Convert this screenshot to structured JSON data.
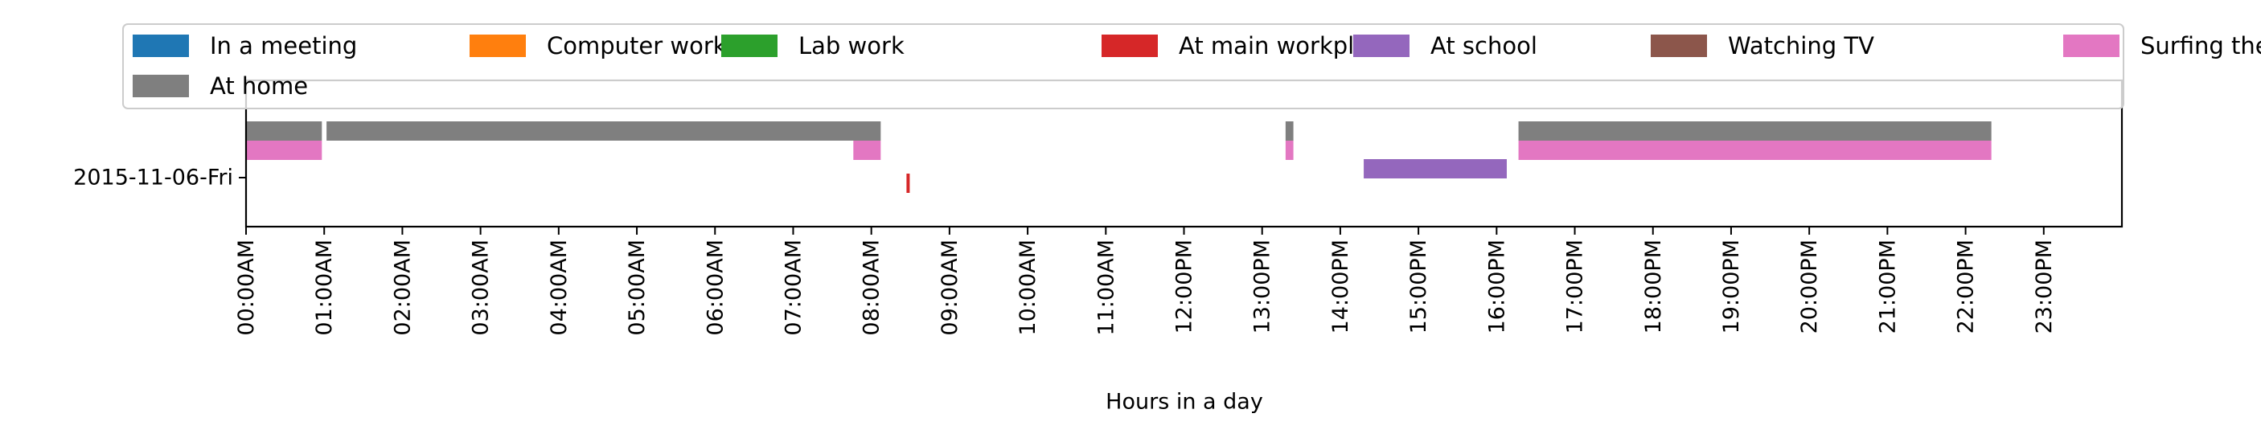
{
  "chart_data": {
    "type": "timeline",
    "title": "",
    "xlabel": "Hours in a day",
    "ylabel": "",
    "xlim": [
      0,
      24
    ],
    "x_ticks": [
      {
        "hour": 0,
        "label": "00:00AM"
      },
      {
        "hour": 1,
        "label": "01:00AM"
      },
      {
        "hour": 2,
        "label": "02:00AM"
      },
      {
        "hour": 3,
        "label": "03:00AM"
      },
      {
        "hour": 4,
        "label": "04:00AM"
      },
      {
        "hour": 5,
        "label": "05:00AM"
      },
      {
        "hour": 6,
        "label": "06:00AM"
      },
      {
        "hour": 7,
        "label": "07:00AM"
      },
      {
        "hour": 8,
        "label": "08:00AM"
      },
      {
        "hour": 9,
        "label": "09:00AM"
      },
      {
        "hour": 10,
        "label": "10:00AM"
      },
      {
        "hour": 11,
        "label": "11:00AM"
      },
      {
        "hour": 12,
        "label": "12:00PM"
      },
      {
        "hour": 13,
        "label": "13:00PM"
      },
      {
        "hour": 14,
        "label": "14:00PM"
      },
      {
        "hour": 15,
        "label": "15:00PM"
      },
      {
        "hour": 16,
        "label": "16:00PM"
      },
      {
        "hour": 17,
        "label": "17:00PM"
      },
      {
        "hour": 18,
        "label": "18:00PM"
      },
      {
        "hour": 19,
        "label": "19:00PM"
      },
      {
        "hour": 20,
        "label": "20:00PM"
      },
      {
        "hour": 21,
        "label": "21:00PM"
      },
      {
        "hour": 22,
        "label": "22:00PM"
      },
      {
        "hour": 23,
        "label": "23:00PM"
      }
    ],
    "y_category": "2015-11-06-Fri",
    "grid": false,
    "legend_placement": "top",
    "series": [
      {
        "name": "In a meeting",
        "color": "#1f77b4",
        "lane": 0,
        "intervals": []
      },
      {
        "name": "Computer work",
        "color": "#ff7f0e",
        "lane": 1,
        "intervals": []
      },
      {
        "name": "Lab work",
        "color": "#2ca02c",
        "lane": 2,
        "intervals": []
      },
      {
        "name": "At main workplace",
        "color": "#d62728",
        "lane": 3,
        "intervals": [
          [
            8.45,
            8.49
          ]
        ]
      },
      {
        "name": "At school",
        "color": "#9467bd",
        "lane": 4,
        "intervals": [
          [
            14.3,
            16.13
          ]
        ]
      },
      {
        "name": "Watching TV",
        "color": "#8c564b",
        "lane": 5,
        "intervals": []
      },
      {
        "name": "Surfing the internet",
        "color": "#e377c2",
        "lane": 6,
        "intervals": [
          [
            0.0,
            0.97
          ],
          [
            7.77,
            8.12
          ],
          [
            13.3,
            13.4
          ],
          [
            16.28,
            22.33
          ]
        ]
      },
      {
        "name": "At home",
        "color": "#7f7f7f",
        "lane": 7,
        "intervals": [
          [
            0.0,
            0.97
          ],
          [
            1.03,
            8.12
          ],
          [
            13.3,
            13.4
          ],
          [
            16.28,
            22.33
          ]
        ]
      }
    ]
  }
}
